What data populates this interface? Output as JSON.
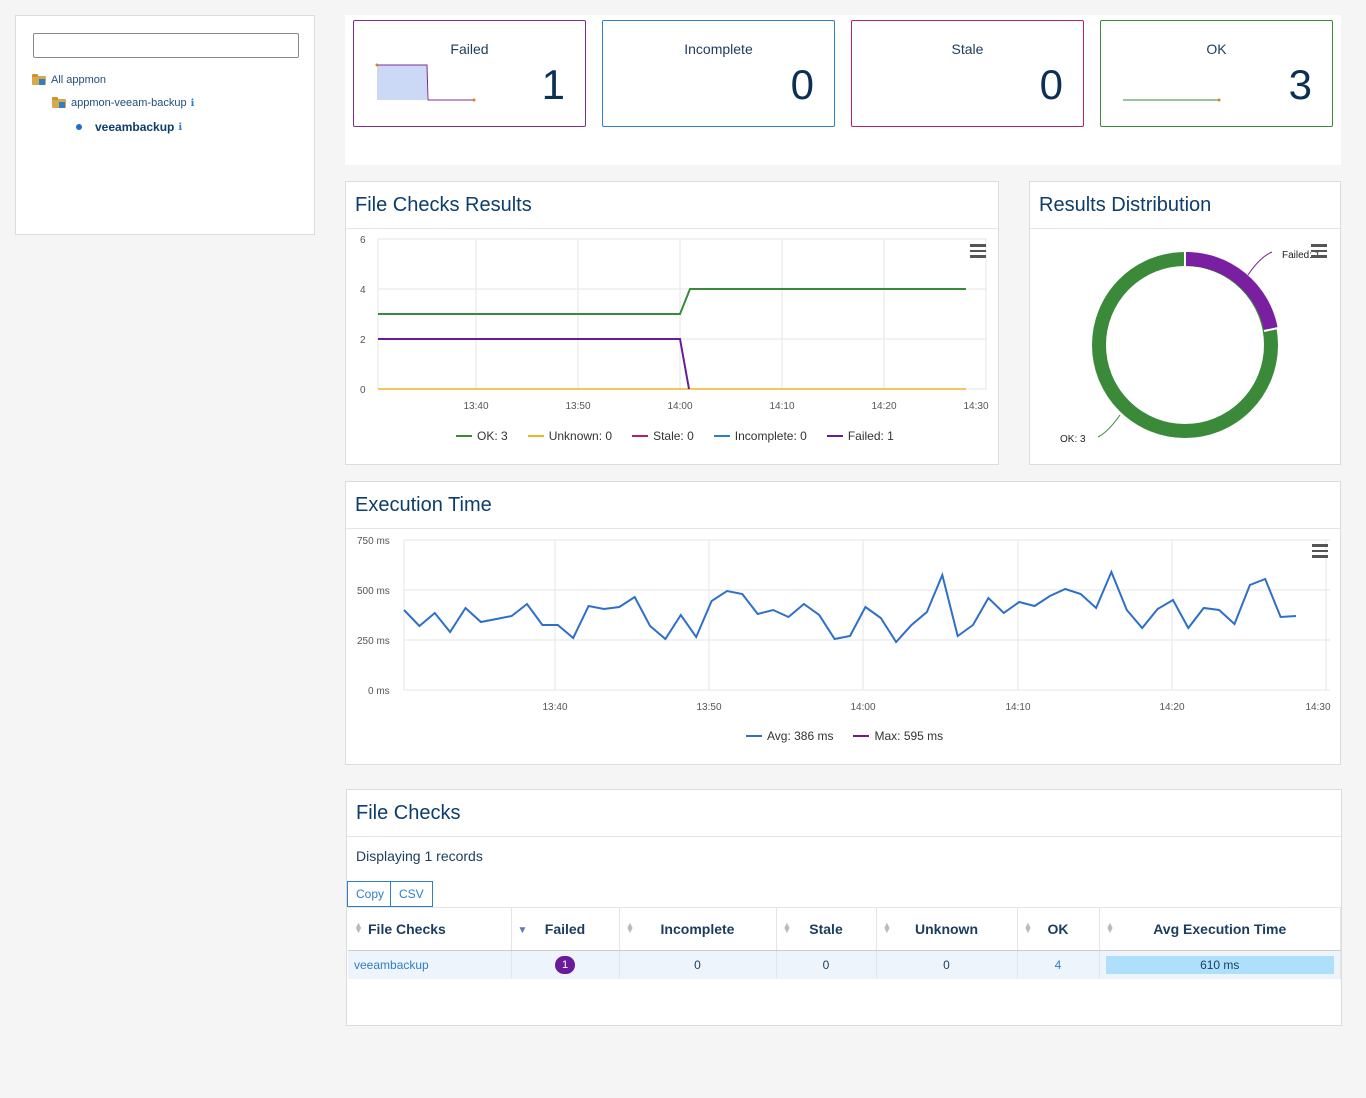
{
  "tree": {
    "search_value": "",
    "root": "All appmon",
    "group": "appmon-veeam-backup",
    "group_info": "ℹ",
    "leaf": "veeambackup",
    "leaf_info": "ℹ"
  },
  "status_cards": [
    {
      "title": "Failed",
      "value": "1",
      "color": "#7b2d8e"
    },
    {
      "title": "Incomplete",
      "value": "0",
      "color": "#2d7fc9"
    },
    {
      "title": "Stale",
      "value": "0",
      "color": "#b0236b"
    },
    {
      "title": "OK",
      "value": "3",
      "color": "#3a8a3a"
    }
  ],
  "file_checks_results": {
    "title": "File Checks Results",
    "legend": [
      "OK: 3",
      "Unknown: 0",
      "Stale: 0",
      "Incomplete: 0",
      "Failed: 1"
    ],
    "colors": {
      "ok": "#3a8a3a",
      "unknown": "#f0b429",
      "stale": "#b0236b",
      "incomplete": "#2d7fc9",
      "failed": "#6a1b9a"
    }
  },
  "results_distribution": {
    "title": "Results Distribution",
    "label_failed": "Failed: 1",
    "label_ok": "OK: 3"
  },
  "execution_time": {
    "title": "Execution Time",
    "legend": [
      "Avg: 386 ms",
      "Max: 595 ms"
    ]
  },
  "file_checks": {
    "title": "File Checks",
    "records_text": "Displaying 1 records",
    "copy_label": "Copy",
    "csv_label": "CSV",
    "columns": [
      "File Checks",
      "Failed",
      "Incomplete",
      "Stale",
      "Unknown",
      "OK",
      "Avg Execution Time"
    ],
    "rows": [
      {
        "name": "veeambackup",
        "failed": "1",
        "incomplete": "0",
        "stale": "0",
        "unknown": "0",
        "ok": "4",
        "avg": "610 ms"
      }
    ]
  },
  "chart_data": [
    {
      "type": "line",
      "title": "File Checks Results",
      "x_ticks": [
        "13:40",
        "13:50",
        "14:00",
        "14:10",
        "14:20",
        "14:30"
      ],
      "y_ticks": [
        "0",
        "2",
        "4",
        "6"
      ],
      "ylim": [
        0,
        6
      ],
      "series": [
        {
          "name": "OK",
          "points": [
            [
              "13:35",
              3
            ],
            [
              "13:60",
              3
            ],
            [
              "14:00",
              3
            ],
            [
              "14:01",
              4
            ],
            [
              "14:29",
              4
            ]
          ]
        },
        {
          "name": "Failed",
          "points": [
            [
              "13:35",
              2
            ],
            [
              "14:00",
              2
            ],
            [
              "14:00.5",
              0
            ]
          ]
        },
        {
          "name": "Unknown",
          "points": [
            [
              "13:35",
              0
            ],
            [
              "14:29",
              0
            ]
          ]
        },
        {
          "name": "Stale",
          "points": [
            [
              "13:35",
              0
            ],
            [
              "14:29",
              0
            ]
          ]
        },
        {
          "name": "Incomplete",
          "points": [
            [
              "13:35",
              0
            ],
            [
              "14:29",
              0
            ]
          ]
        }
      ]
    },
    {
      "type": "pie",
      "title": "Results Distribution",
      "slices": [
        {
          "name": "Failed",
          "value": 1,
          "color": "#7b1fa2"
        },
        {
          "name": "OK",
          "value": 3,
          "color": "#3a8a3a"
        }
      ]
    },
    {
      "type": "line",
      "title": "Execution Time",
      "x_ticks": [
        "13:40",
        "13:50",
        "14:00",
        "14:10",
        "14:20",
        "14:30"
      ],
      "y_ticks": [
        "0 ms",
        "250 ms",
        "500 ms",
        "750 ms"
      ],
      "ylim": [
        0,
        750
      ],
      "series": [
        {
          "name": "Avg",
          "color": "#2d6fc9",
          "values": [
            400,
            320,
            385,
            290,
            410,
            340,
            355,
            370,
            430,
            325,
            325,
            260,
            420,
            405,
            415,
            465,
            320,
            255,
            375,
            265,
            445,
            495,
            480,
            380,
            400,
            365,
            430,
            375,
            255,
            270,
            415,
            360,
            240,
            325,
            390,
            575,
            270,
            325,
            460,
            385,
            440,
            420,
            470,
            505,
            480,
            410,
            590,
            400,
            310,
            405,
            450,
            310,
            410,
            400,
            330,
            525,
            555,
            365,
            370
          ]
        },
        {
          "name": "Max",
          "color": "#6a1b9a",
          "values": []
        }
      ]
    }
  ]
}
